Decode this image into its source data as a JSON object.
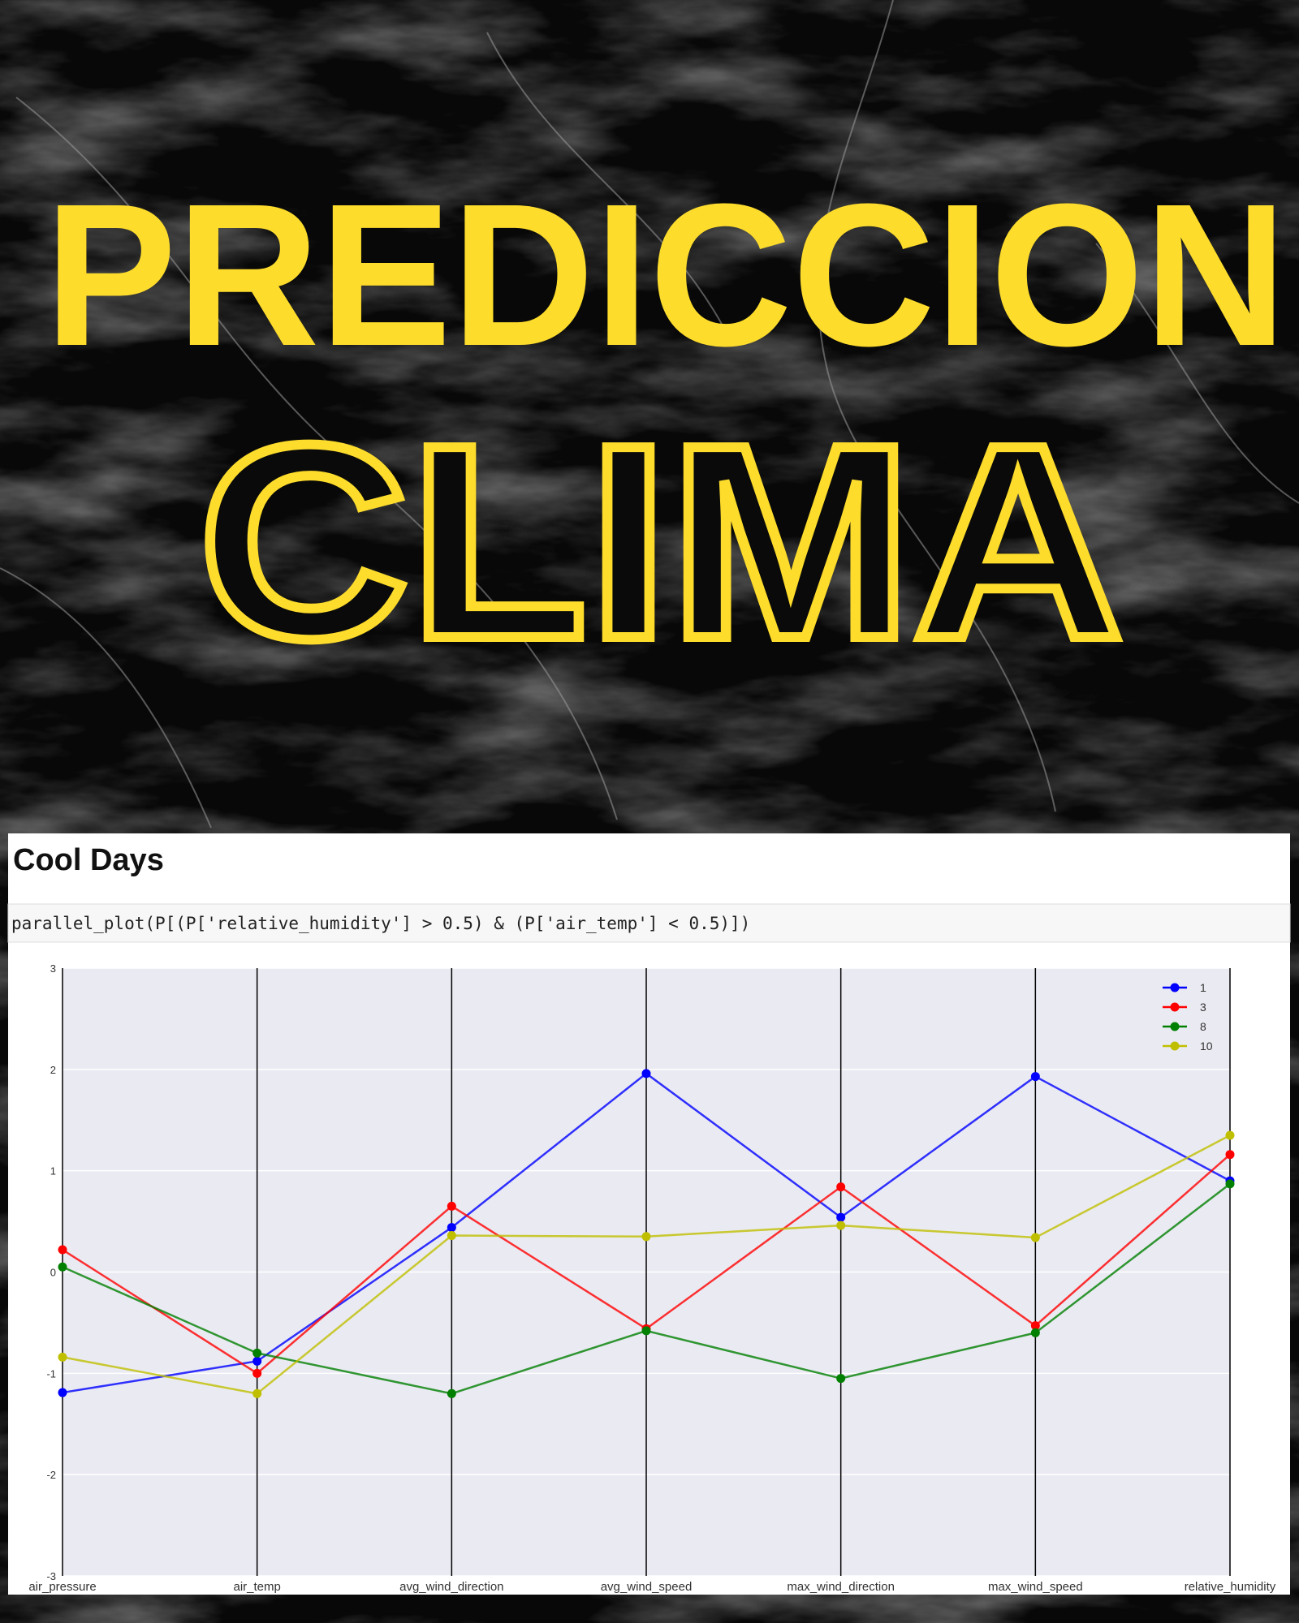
{
  "header": {
    "title": "PREDICCION",
    "subtitle": "CLIMA"
  },
  "panel": {
    "heading": "Cool Days",
    "code": "parallel_plot(P[(P['relative_humidity'] > 0.5) & (P['air_temp'] < 0.5)])"
  },
  "chart_data": {
    "type": "line",
    "categories": [
      "air_pressure",
      "air_temp",
      "avg_wind_direction",
      "avg_wind_speed",
      "max_wind_direction",
      "max_wind_speed",
      "relative_humidity"
    ],
    "series": [
      {
        "name": "1",
        "color": "#0000ff",
        "values": [
          -1.19,
          -0.88,
          0.44,
          1.96,
          0.54,
          1.93,
          0.9
        ]
      },
      {
        "name": "3",
        "color": "#ff0000",
        "values": [
          0.22,
          -1.0,
          0.65,
          -0.56,
          0.84,
          -0.53,
          1.16
        ]
      },
      {
        "name": "8",
        "color": "#008000",
        "values": [
          0.05,
          -0.8,
          -1.2,
          -0.58,
          -1.05,
          -0.6,
          0.87
        ]
      },
      {
        "name": "10",
        "color": "#bfbf00",
        "values": [
          -0.84,
          -1.2,
          0.36,
          0.35,
          0.46,
          0.34,
          1.35
        ]
      }
    ],
    "ylim": [
      -3,
      3
    ],
    "yticks": [
      -3,
      -2,
      -1,
      0,
      1,
      2,
      3
    ],
    "grid": true,
    "legend": "upper right"
  }
}
